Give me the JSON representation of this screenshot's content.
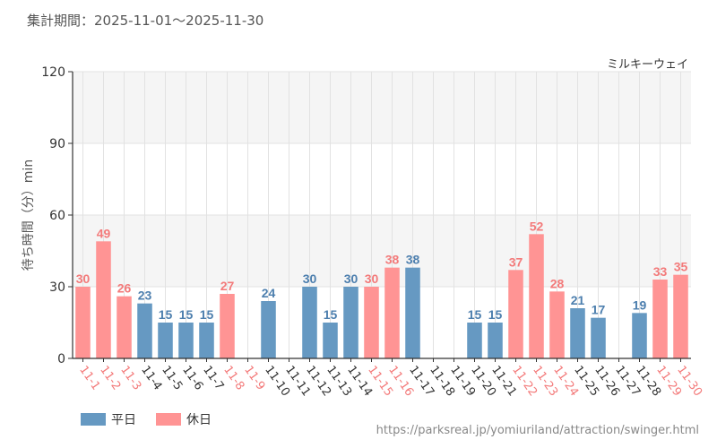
{
  "header": {
    "period": "集計期間：2025-11-01〜2025-11-30"
  },
  "footer": {
    "source_url": "https://parksreal.jp/yomiuriland/attraction/swinger.html"
  },
  "legend": {
    "weekday": {
      "label": "平日",
      "color": "#6699c2"
    },
    "holiday": {
      "label": "休日",
      "color": "#ff9494"
    }
  },
  "colors": {
    "weekday_text": "#4d7fae",
    "holiday_text": "#f37a7a",
    "band": "#f5f5f5",
    "grid": "#e2e2e2",
    "axis": "#333333"
  },
  "chart_data": {
    "type": "bar",
    "title": "ミルキーウェイ",
    "xlabel": "",
    "ylabel": "待ち時間（分）min",
    "ylim": [
      0,
      120
    ],
    "yticks": [
      0,
      30,
      60,
      90,
      120
    ],
    "categories": [
      "11-1",
      "11-2",
      "11-3",
      "11-4",
      "11-5",
      "11-6",
      "11-7",
      "11-8",
      "11-9",
      "11-10",
      "11-11",
      "11-12",
      "11-13",
      "11-14",
      "11-15",
      "11-16",
      "11-17",
      "11-18",
      "11-19",
      "11-20",
      "11-21",
      "11-22",
      "11-23",
      "11-24",
      "11-25",
      "11-26",
      "11-27",
      "11-28",
      "11-29",
      "11-30"
    ],
    "values": [
      30,
      49,
      26,
      23,
      15,
      15,
      15,
      27,
      null,
      24,
      null,
      30,
      15,
      30,
      30,
      38,
      38,
      null,
      null,
      15,
      15,
      37,
      52,
      28,
      21,
      17,
      null,
      19,
      33,
      35
    ],
    "day_type": [
      "holiday",
      "holiday",
      "holiday",
      "weekday",
      "weekday",
      "weekday",
      "weekday",
      "holiday",
      "holiday",
      "weekday",
      "weekday",
      "weekday",
      "weekday",
      "weekday",
      "holiday",
      "holiday",
      "weekday",
      "weekday",
      "weekday",
      "weekday",
      "weekday",
      "holiday",
      "holiday",
      "holiday",
      "weekday",
      "weekday",
      "weekday",
      "weekday",
      "holiday",
      "holiday"
    ]
  }
}
